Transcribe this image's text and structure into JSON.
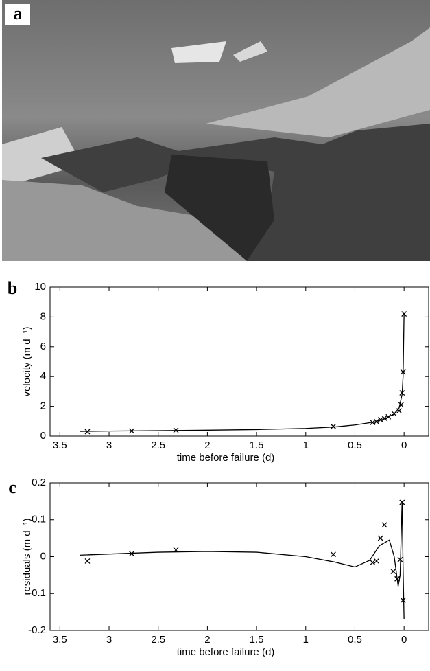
{
  "panels": [
    "a",
    "b",
    "c"
  ],
  "chart_data": [
    {
      "type": "scatter",
      "ylabel": "velocity (m d⁻¹)",
      "xlabel": "time before failure (d)",
      "xlim": [
        3.6,
        -0.25
      ],
      "xticks": [
        3.5,
        3,
        2.5,
        2,
        1.5,
        1,
        0.5,
        0
      ],
      "ylim": [
        0,
        10
      ],
      "yticks": [
        0,
        2,
        4,
        6,
        8,
        10
      ],
      "series": [
        {
          "style": "marker",
          "color": "#000",
          "x": [
            3.22,
            2.77,
            2.32,
            0.72,
            0.32,
            0.28,
            0.24,
            0.2,
            0.16,
            0.1,
            0.05,
            0.03,
            0.02,
            0.01,
            0.0
          ],
          "values": [
            0.3,
            0.35,
            0.4,
            0.65,
            0.92,
            0.98,
            1.1,
            1.2,
            1.3,
            1.5,
            1.7,
            2.1,
            2.9,
            4.3,
            8.2
          ]
        },
        {
          "style": "line",
          "color": "#000",
          "x": [
            3.3,
            3,
            2.5,
            2,
            1.5,
            1,
            0.7,
            0.5,
            0.3,
            0.2,
            0.1,
            0.05,
            0.02,
            0.01,
            0
          ],
          "values": [
            0.32,
            0.34,
            0.37,
            0.4,
            0.44,
            0.52,
            0.62,
            0.75,
            0.95,
            1.15,
            1.5,
            1.9,
            2.8,
            4,
            8.2
          ]
        }
      ]
    },
    {
      "type": "scatter",
      "ylabel": "residuals (m d⁻¹)",
      "xlabel": "time before failure (d)",
      "xlim": [
        3.6,
        -0.25
      ],
      "xticks": [
        3.5,
        3,
        2.5,
        2,
        1.5,
        1,
        0.5,
        0
      ],
      "ylim": [
        -0.2,
        0.2
      ],
      "yticks": [
        -0.2,
        -0.1,
        0,
        0.1,
        0.2
      ],
      "series": [
        {
          "style": "marker",
          "color": "#000",
          "x": [
            3.22,
            2.77,
            2.32,
            0.72,
            0.32,
            0.28,
            0.24,
            0.2,
            0.11,
            0.07,
            0.04,
            0.02,
            0.01
          ],
          "values": [
            -0.012,
            0.008,
            0.018,
            0.006,
            -0.016,
            -0.012,
            0.05,
            0.086,
            -0.04,
            -0.06,
            -0.008,
            0.147,
            -0.118
          ]
        },
        {
          "style": "line",
          "color": "#000",
          "x": [
            3.3,
            2.5,
            2,
            1.5,
            1,
            0.7,
            0.5,
            0.35,
            0.25,
            0.15,
            0.1,
            0.06,
            0.04,
            0.02,
            0.01,
            0
          ],
          "values": [
            0.004,
            0.012,
            0.014,
            0.012,
            0,
            -0.015,
            -0.028,
            -0.01,
            0.03,
            0.045,
            0,
            -0.08,
            -0.05,
            0.15,
            -0.03,
            -0.17
          ]
        }
      ]
    }
  ]
}
